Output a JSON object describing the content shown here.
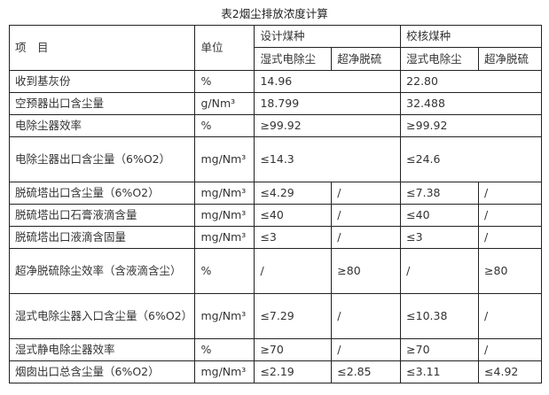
{
  "title": "表2烟尘排放浓度计算",
  "header": {
    "item": "项　目",
    "unit": "单位",
    "design": "设计煤种",
    "check": "校核煤种",
    "sub": [
      "湿式电除尘",
      "超净脱硫",
      "湿式电除尘",
      "超净脱硫"
    ]
  },
  "rows": [
    {
      "item": "收到基灰份",
      "unit": "%",
      "v": [
        "14.96",
        "22.80"
      ],
      "merged": true
    },
    {
      "item": "空预器出口含尘量",
      "unit": "g/Nm³",
      "v": [
        "18.799",
        "32.488"
      ],
      "merged": true
    },
    {
      "item": "电除尘器效率",
      "unit": "%",
      "v": [
        "≥99.92",
        "≥99.92"
      ],
      "merged": true
    },
    {
      "item": "电除尘器出口含尘量（6%O2）",
      "unit": "mg/Nm³",
      "v": [
        "≤14.3",
        "≤24.6"
      ],
      "merged": true,
      "tall": true
    },
    {
      "item": "脱硫塔出口含尘量（6%O2）",
      "unit": "mg/Nm³",
      "v": [
        "≤4.29",
        "/",
        "≤7.38",
        "/"
      ]
    },
    {
      "item": "脱硫塔出口石膏液滴含量",
      "unit": "mg/Nm³",
      "v": [
        "≤40",
        "/",
        "≤40",
        "/"
      ]
    },
    {
      "item": "脱硫塔出口液滴含固量",
      "unit": "mg/Nm³",
      "v": [
        "≤3",
        "/",
        "≤3",
        "/"
      ]
    },
    {
      "item": "超净脱硫除尘效率（含液滴含尘）",
      "unit": "%",
      "v": [
        "/",
        "≥80",
        "/",
        "≥80"
      ],
      "tall": true
    },
    {
      "item": "湿式电除尘器入口含尘量（6%O2）",
      "unit": "mg/Nm³",
      "v": [
        "≤7.29",
        "/",
        "≤10.38",
        "/"
      ],
      "tall": true
    },
    {
      "item": "湿式静电除尘器效率",
      "unit": "%",
      "v": [
        "≥70",
        "/",
        "≥70",
        "/"
      ]
    },
    {
      "item": "烟囱出口总含尘量（6%O2）",
      "unit": "mg/Nm³",
      "v": [
        "≤2.19",
        "≤2.85",
        "≤3.11",
        "≤4.92"
      ]
    }
  ]
}
